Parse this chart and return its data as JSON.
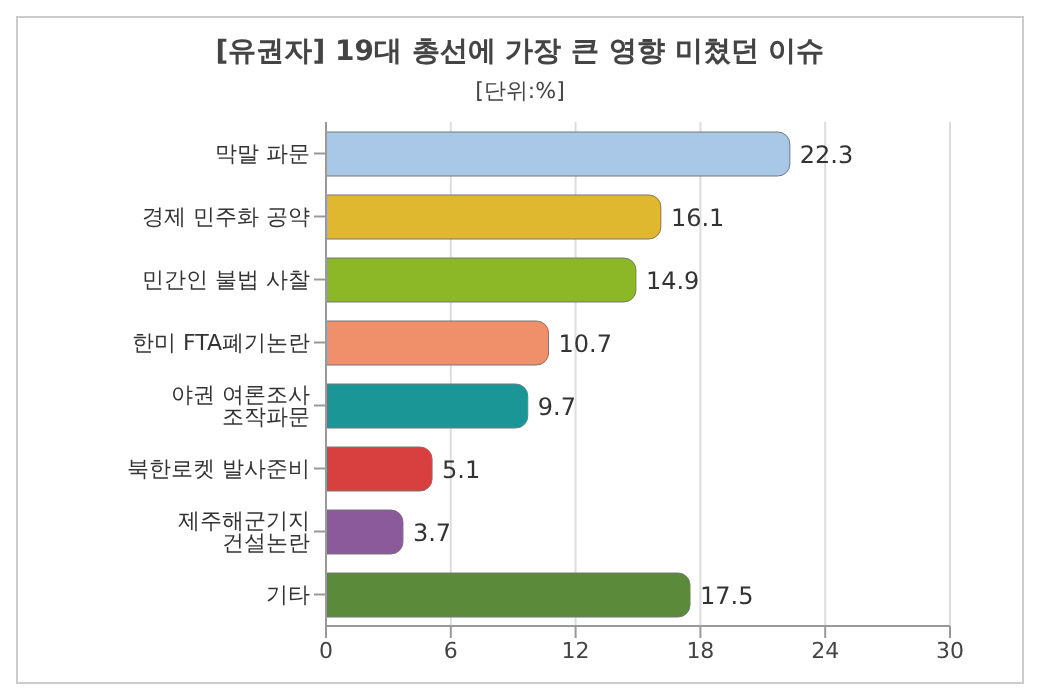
{
  "chart_data": {
    "type": "bar",
    "orientation": "horizontal",
    "title": "[유권자] 19대 총선에 가장 큰 영향 미쳤던 이슈",
    "subtitle": "[단위:%]",
    "categories": [
      "막말 파문",
      "경제 민주화 공약",
      "민간인 불법 사찰",
      "한미 FTA폐기논란",
      "야권 여론조사 조작파문",
      "북한로켓 발사준비",
      "제주해군기지 건설논란",
      "기타"
    ],
    "values": [
      22.3,
      16.1,
      14.9,
      10.7,
      9.7,
      5.1,
      3.7,
      17.5
    ],
    "colors": [
      "#a9c8e8",
      "#e0b830",
      "#8cb828",
      "#f0906a",
      "#1a9696",
      "#d84040",
      "#8a5a9a",
      "#5a8a3a"
    ],
    "xlim": [
      0,
      30
    ],
    "xticks": [
      0,
      6,
      12,
      18,
      24,
      30
    ],
    "grid": "x",
    "data_labels": true
  }
}
